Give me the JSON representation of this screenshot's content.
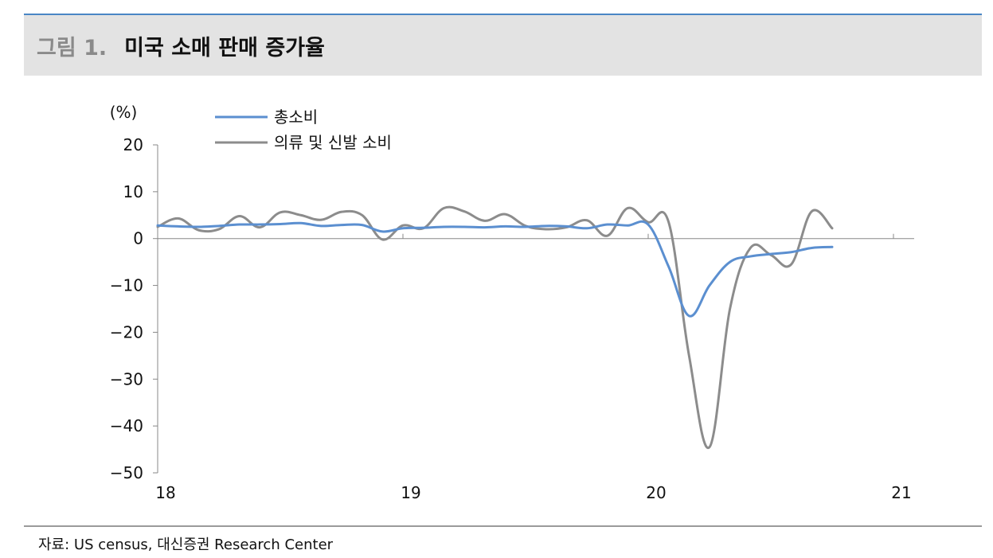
{
  "header": {
    "figure_number": "그림 1.",
    "title": "미국 소매 판매 증가율"
  },
  "source": "자료: US census, 대신증권 Research Center",
  "chart_data": {
    "type": "line",
    "title": "미국 소매 판매 증가율",
    "ylabel": "(%)",
    "xlabel": "",
    "x_unit": "month index from Jan 2018",
    "ylim": [
      -50,
      20
    ],
    "xlim": [
      0,
      36
    ],
    "y_ticks": [
      20,
      10,
      0,
      -10,
      -20,
      -30,
      -40,
      -50
    ],
    "y_tick_labels": [
      "20",
      "10",
      "0",
      "−10",
      "−20",
      "−30",
      "−40",
      "−50"
    ],
    "x_ticks": [
      0,
      12,
      24,
      36
    ],
    "x_tick_labels": [
      "18",
      "19",
      "20",
      "21"
    ],
    "grid": false,
    "legend_position": "top-left",
    "series": [
      {
        "name": "총소비",
        "color": "#5b8fd0",
        "x": [
          0,
          1,
          2,
          3,
          4,
          5,
          6,
          7,
          8,
          9,
          10,
          11,
          12,
          13,
          14,
          15,
          16,
          17,
          18,
          19,
          20,
          21,
          22,
          23,
          24,
          25,
          26,
          27,
          28,
          29,
          30,
          31,
          32,
          33
        ],
        "values": [
          2.8,
          2.6,
          2.5,
          2.7,
          3.0,
          3.0,
          3.1,
          3.3,
          2.7,
          2.9,
          2.9,
          1.5,
          2.2,
          2.3,
          2.5,
          2.5,
          2.4,
          2.6,
          2.5,
          2.7,
          2.6,
          2.2,
          3.0,
          2.8,
          3.0,
          -6.0,
          -16.5,
          -10.0,
          -5.0,
          -3.8,
          -3.3,
          -2.9,
          -2.0,
          -1.8
        ]
      },
      {
        "name": "의류 및 신발 소비",
        "color": "#8c8c8c",
        "x": [
          0,
          1,
          2,
          3,
          4,
          5,
          6,
          7,
          8,
          9,
          10,
          11,
          12,
          13,
          14,
          15,
          16,
          17,
          18,
          19,
          20,
          21,
          22,
          23,
          24,
          25,
          26,
          27,
          28,
          29,
          30,
          31,
          32,
          33
        ],
        "values": [
          2.5,
          4.3,
          1.8,
          2.0,
          4.8,
          2.4,
          5.6,
          5.0,
          4.0,
          5.7,
          5.0,
          -0.2,
          2.8,
          2.2,
          6.5,
          5.8,
          3.8,
          5.2,
          2.7,
          2.0,
          2.4,
          3.9,
          0.6,
          6.5,
          3.5,
          3.5,
          -25.0,
          -44.5,
          -15.0,
          -2.0,
          -3.5,
          -5.5,
          5.8,
          2.2
        ]
      }
    ]
  }
}
